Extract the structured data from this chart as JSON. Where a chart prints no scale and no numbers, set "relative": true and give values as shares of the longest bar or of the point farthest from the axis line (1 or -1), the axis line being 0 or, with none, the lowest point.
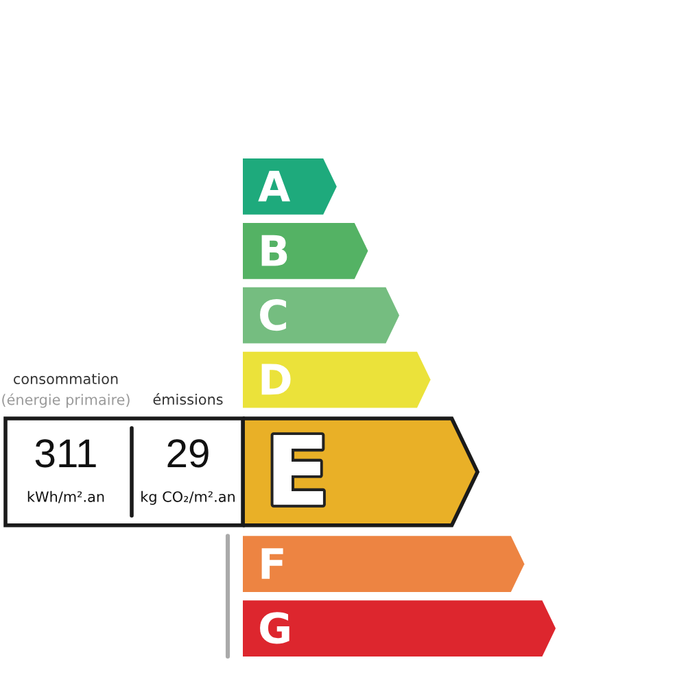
{
  "chart_data": {
    "type": "bar",
    "orientation": "horizontal",
    "relative": true,
    "categories": [
      "A",
      "B",
      "C",
      "D",
      "E",
      "F",
      "G"
    ],
    "values": [
      0.3,
      0.4,
      0.5,
      0.6,
      0.75,
      0.9,
      1.0
    ],
    "colors": [
      "#1eaa7c",
      "#54b264",
      "#75bd80",
      "#ebe23a",
      "#e9b027",
      "#ed8442",
      "#dd262e"
    ],
    "needle": "E",
    "annotations": [
      "consommation",
      "(énergie primaire)",
      "émissions",
      "311",
      "kWh/m².an",
      "29",
      "kg CO₂/m².an"
    ]
  }
}
